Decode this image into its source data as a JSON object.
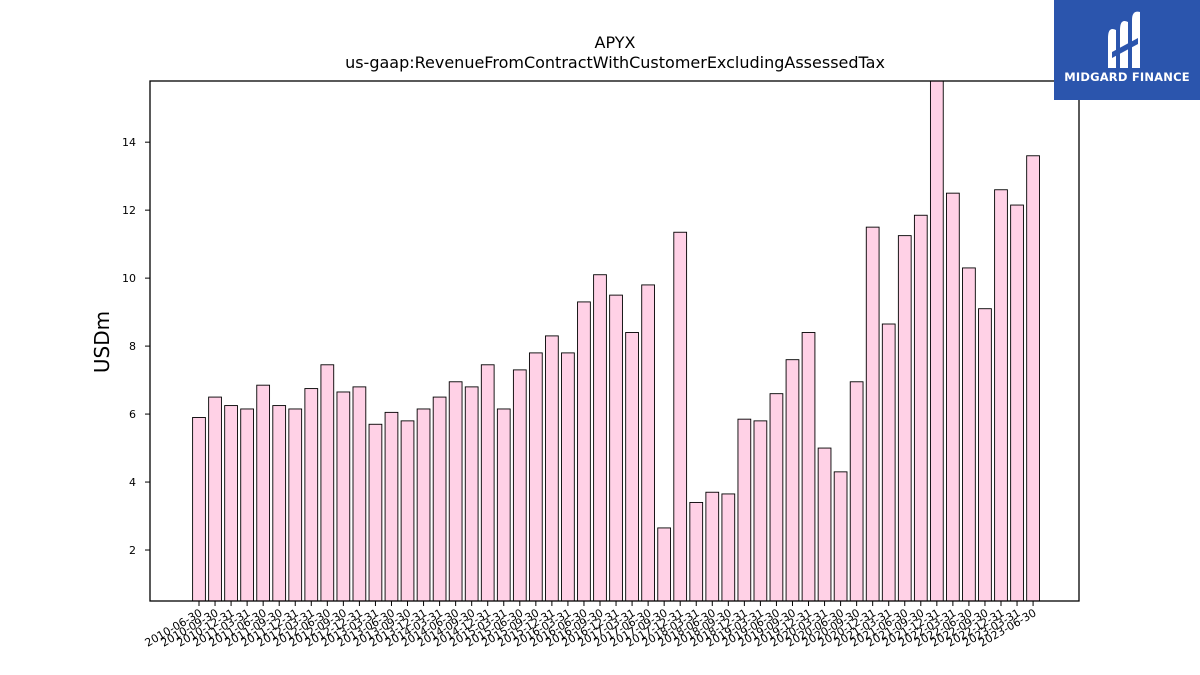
{
  "chart_data": {
    "type": "bar",
    "title": "APYX",
    "subtitle": "us-gaap:RevenueFromContractWithCustomerExcludingAssessedTax",
    "ylabel": "USDm",
    "xlabel": "",
    "ylim": [
      0.5,
      15.8
    ],
    "yticks": [
      2,
      4,
      6,
      8,
      10,
      12,
      14
    ],
    "grid": false,
    "bar_color": "#ffd1e6",
    "edge_color": "#000000",
    "categories": [
      "2010-06-30",
      "2010-09-30",
      "2010-12-31",
      "2011-03-31",
      "2011-06-30",
      "2011-09-30",
      "2011-12-31",
      "2012-03-31",
      "2012-06-30",
      "2012-09-30",
      "2012-12-31",
      "2013-03-31",
      "2013-06-30",
      "2013-09-30",
      "2013-12-31",
      "2014-03-31",
      "2014-06-30",
      "2014-09-30",
      "2014-12-31",
      "2015-03-31",
      "2015-06-30",
      "2015-09-30",
      "2015-12-31",
      "2016-03-31",
      "2016-06-30",
      "2016-09-30",
      "2016-12-31",
      "2017-03-31",
      "2017-06-30",
      "2017-09-30",
      "2017-12-31",
      "2018-03-31",
      "2018-06-30",
      "2018-09-30",
      "2018-12-31",
      "2019-03-31",
      "2019-06-30",
      "2019-09-30",
      "2019-12-31",
      "2020-03-31",
      "2020-06-30",
      "2020-09-30",
      "2020-12-31",
      "2021-03-31",
      "2021-06-30",
      "2021-09-30",
      "2021-12-31",
      "2022-03-31",
      "2022-06-30",
      "2022-09-30",
      "2022-12-31",
      "2023-03-31",
      "2023-06-30"
    ],
    "values": [
      5.9,
      6.5,
      6.25,
      6.15,
      6.85,
      6.25,
      6.15,
      6.75,
      7.45,
      6.65,
      6.8,
      5.7,
      6.05,
      5.8,
      6.15,
      6.5,
      6.95,
      6.8,
      7.45,
      6.15,
      7.3,
      7.8,
      8.3,
      7.8,
      9.3,
      10.1,
      9.5,
      8.4,
      9.8,
      2.65,
      11.35,
      3.4,
      3.7,
      3.65,
      5.85,
      5.8,
      6.6,
      7.6,
      8.4,
      5.0,
      4.3,
      6.95,
      11.5,
      8.65,
      11.25,
      11.85,
      15.8,
      12.5,
      10.3,
      9.1,
      12.6,
      12.15,
      13.6
    ]
  },
  "logo": {
    "text": "MIDGARD FINANCE",
    "bg_color": "#2b55ad"
  }
}
